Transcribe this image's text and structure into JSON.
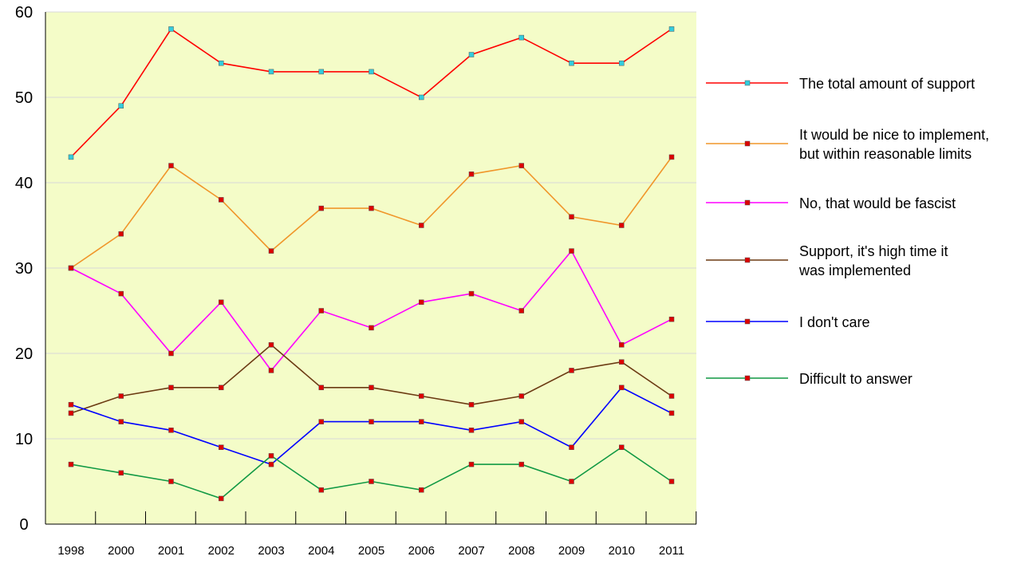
{
  "chart_data": {
    "type": "line",
    "title": "",
    "xlabel": "",
    "ylabel": "",
    "categories": [
      "1998",
      "2000",
      "2001",
      "2002",
      "2003",
      "2004",
      "2005",
      "2006",
      "2007",
      "2008",
      "2009",
      "2010",
      "2011"
    ],
    "ylim": [
      0,
      60
    ],
    "yticks": [
      "0",
      "10",
      "20",
      "30",
      "40",
      "50",
      "60"
    ],
    "grid": "horizontal",
    "legend_position": "right",
    "background_color": "#f4fcc8",
    "series": [
      {
        "name": "The total amount of support",
        "color": "#ff0000",
        "marker_color": "#33ccdd",
        "values": [
          43,
          49,
          58,
          54,
          53,
          53,
          53,
          50,
          55,
          57,
          54,
          54,
          58
        ]
      },
      {
        "name": "It would be nice to implement,\nbut within reasonable limits",
        "color": "#f0962a",
        "marker_color": "#dd0000",
        "values": [
          30,
          34,
          42,
          38,
          32,
          37,
          37,
          35,
          41,
          42,
          36,
          35,
          43
        ]
      },
      {
        "name": "No, that would be fascist",
        "color": "#ff00ff",
        "marker_color": "#dd0000",
        "values": [
          30,
          27,
          20,
          26,
          18,
          25,
          23,
          26,
          27,
          25,
          32,
          21,
          24
        ]
      },
      {
        "name": "Support, it's high time it\nwas implemented",
        "color": "#6b3a12",
        "marker_color": "#dd0000",
        "values": [
          13,
          15,
          16,
          16,
          21,
          16,
          16,
          15,
          14,
          15,
          18,
          19,
          15
        ]
      },
      {
        "name": "I don't care",
        "color": "#0000ff",
        "marker_color": "#dd0000",
        "values": [
          14,
          12,
          11,
          9,
          7,
          12,
          12,
          12,
          11,
          12,
          9,
          16,
          13
        ]
      },
      {
        "name": "Difficult to answer",
        "color": "#119944",
        "marker_color": "#dd0000",
        "values": [
          7,
          6,
          5,
          3,
          8,
          4,
          5,
          4,
          7,
          7,
          5,
          9,
          5
        ]
      }
    ]
  }
}
